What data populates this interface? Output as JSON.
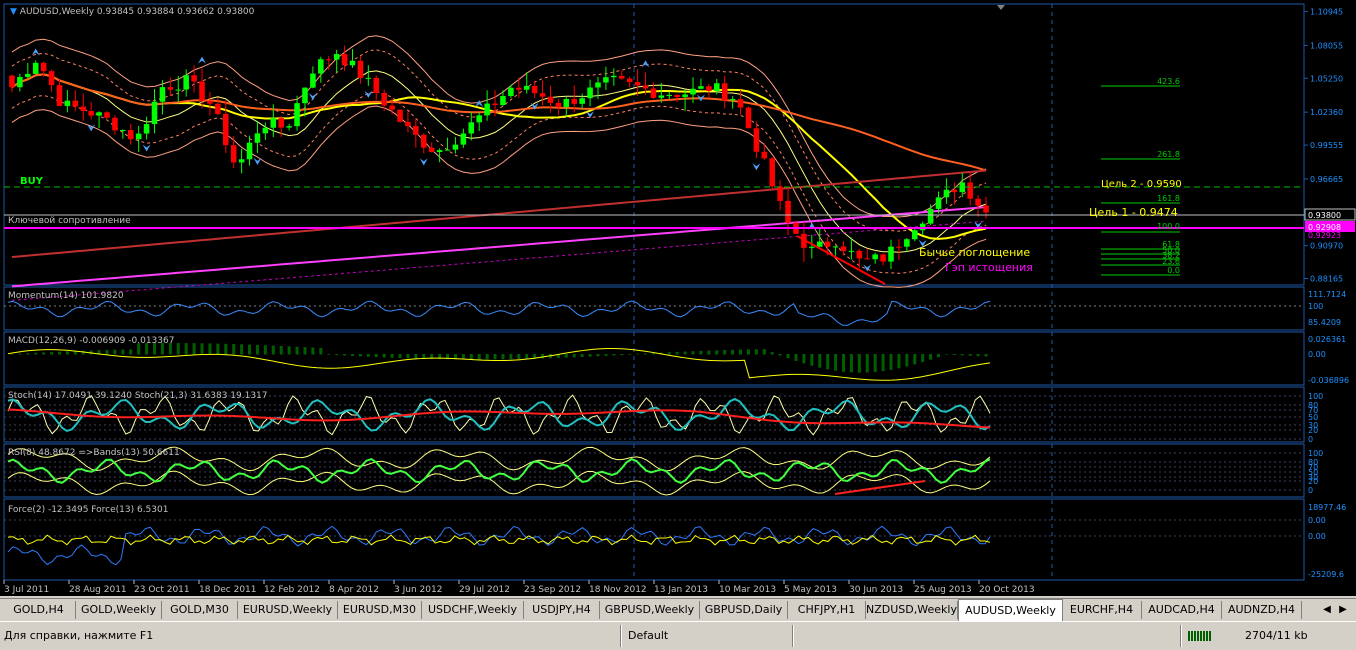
{
  "symbol_header": {
    "symbol": "AUDUSD,Weekly",
    "ohlc": "0.93845 0.93884 0.93662 0.93800"
  },
  "main_price_axis": [
    "1.10945",
    "1.08055",
    "1.05250",
    "1.02360",
    "0.99555",
    "0.96665",
    "0.93800",
    "0.92908",
    "0.90970",
    "0.88165"
  ],
  "price_tags": {
    "current": "0.93800",
    "level": "0.92908",
    "level_shadow": "0.92923"
  },
  "labels": {
    "buy": "BUY",
    "key_resistance": "Ключевой сопротивление",
    "target2": "Цель 2 - 0.9590",
    "target1": "Цель 1 - 0.9474",
    "bullish_engulfing": "Бычье поглощение",
    "gap": "Гэп истощения"
  },
  "fibo_levels": [
    "423.6",
    "261.8",
    "161.8",
    "100.0",
    "61.8",
    "50.0",
    "38.2",
    "23.6",
    "0.0"
  ],
  "indicators": {
    "momentum": {
      "label": "Momentum(14) 101.9820",
      "axis": [
        "111.7124",
        "100",
        "85.4209"
      ]
    },
    "macd": {
      "label": "MACD(12,26,9) -0.006909 -0.013367",
      "axis": [
        "0.026361",
        "0.00",
        "-0.036896"
      ]
    },
    "stoch": {
      "label": "Stoch(14) 17.0491 39.1240  Stoch(21,3) 31.6383 19.1317",
      "axis": [
        "100",
        "80",
        "70",
        "50",
        "30",
        "20",
        "0"
      ]
    },
    "rsi": {
      "label": "RSI(8) 48.8672  =>Bands(13) 50.6611",
      "axis": [
        "100",
        "80",
        "70",
        "50",
        "30",
        "20",
        "0"
      ]
    },
    "force": {
      "label": "Force(2) -12.3495  Force(13) 6.5301",
      "axis": [
        "18977.46",
        "0.00",
        "0.00",
        "-25209.6"
      ]
    }
  },
  "time_axis": [
    "3 Jul 2011",
    "28 Aug 2011",
    "23 Oct 2011",
    "18 Dec 2011",
    "12 Feb 2012",
    "8 Apr 2012",
    "3 Jun 2012",
    "29 Jul 2012",
    "23 Sep 2012",
    "18 Nov 2012",
    "13 Jan 2013",
    "10 Mar 2013",
    "5 May 2013",
    "30 Jun 2013",
    "25 Aug 2013",
    "20 Oct 2013"
  ],
  "tabs": [
    "GOLD,H4",
    "GOLD,Weekly",
    "GOLD,M30",
    "EURUSD,Weekly",
    "EURUSD,M30",
    "USDCHF,Weekly",
    "USDJPY,H4",
    "GBPUSD,Weekly",
    "GBPUSD,Daily",
    "CHFJPY,H1",
    "NZDUSD,Weekly",
    "AUDUSD,Weekly",
    "EURCHF,H4",
    "AUDCAD,H4",
    "AUDNZD,H4"
  ],
  "active_tab": "AUDUSD,Weekly",
  "status": {
    "help": "Для справки, нажмите F1",
    "profile": "Default",
    "traffic": "2704/11 kb"
  },
  "colors": {
    "bull": "#00ff00",
    "bear": "#ff0000",
    "axis": "#1e5aa8",
    "fibo": "#00cc00",
    "magenta": "#ff00ff"
  },
  "chart_data": {
    "type": "candlestick",
    "title": "AUDUSD,Weekly",
    "x_ticks": [
      "3 Jul 2011",
      "28 Aug 2011",
      "23 Oct 2011",
      "18 Dec 2011",
      "12 Feb 2012",
      "8 Apr 2012",
      "3 Jun 2012",
      "29 Jul 2012",
      "23 Sep 2012",
      "18 Nov 2012",
      "13 Jan 2013",
      "10 Mar 2013",
      "5 May 2013",
      "30 Jun 2013",
      "25 Aug 2013",
      "20 Oct 2013"
    ],
    "ylim": [
      0.8787,
      1.1125
    ],
    "close_path": [
      1.045,
      1.07,
      1.03,
      1.025,
      1.015,
      1.0,
      1.045,
      1.05,
      1.03,
      0.975,
      1.015,
      1.01,
      1.06,
      1.075,
      1.055,
      1.03,
      1.005,
      0.99,
      1.005,
      1.025,
      1.045,
      1.04,
      1.03,
      1.04,
      1.05,
      1.045,
      1.04,
      1.04,
      1.045,
      1.035,
      0.985,
      0.93,
      0.905,
      0.915,
      0.895,
      0.9,
      0.925,
      0.945,
      0.965,
      0.938
    ],
    "last": {
      "open": 0.93845,
      "high": 0.93884,
      "low": 0.93662,
      "close": 0.938
    }
  }
}
